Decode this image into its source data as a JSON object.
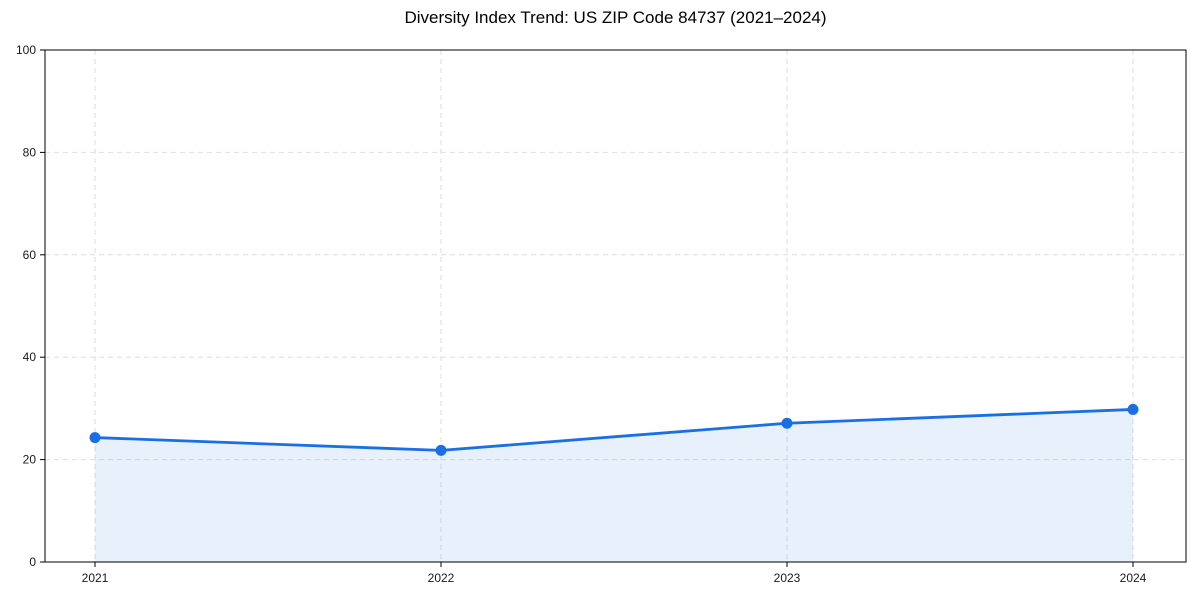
{
  "figure": {
    "title": "Diversity Index Trend: US ZIP Code 84737 (2021–2024)"
  },
  "chart_data": {
    "type": "line",
    "title": "Diversity Index Trend: US ZIP Code 84737 (2021–2024)",
    "x": [
      "2021",
      "2022",
      "2023",
      "2024"
    ],
    "series": [
      {
        "name": "Diversity Index",
        "values": [
          24.3,
          21.8,
          27.1,
          29.8
        ]
      }
    ],
    "xlabel": "",
    "ylabel": "",
    "ylim": [
      0,
      100
    ],
    "yticks": [
      0,
      20,
      40,
      60,
      80,
      100
    ],
    "xticks": [
      "2021",
      "2022",
      "2023",
      "2024"
    ],
    "grid": true,
    "grid_linestyle": "dashed",
    "legend": "none",
    "marker": "circle",
    "marker_radius": 5.5,
    "line_width": 2.8,
    "area_fill_to_zero": true,
    "area_fill_opacity": 0.1,
    "colors": {
      "line": "#1b6fe5",
      "marker": "#1b6fe5",
      "area_fill": "#1b6fe5",
      "grid": "#dedede",
      "spine": "#000000",
      "tick_label": "#1a1a1a",
      "title": "#000000",
      "background": "#ffffff"
    }
  }
}
